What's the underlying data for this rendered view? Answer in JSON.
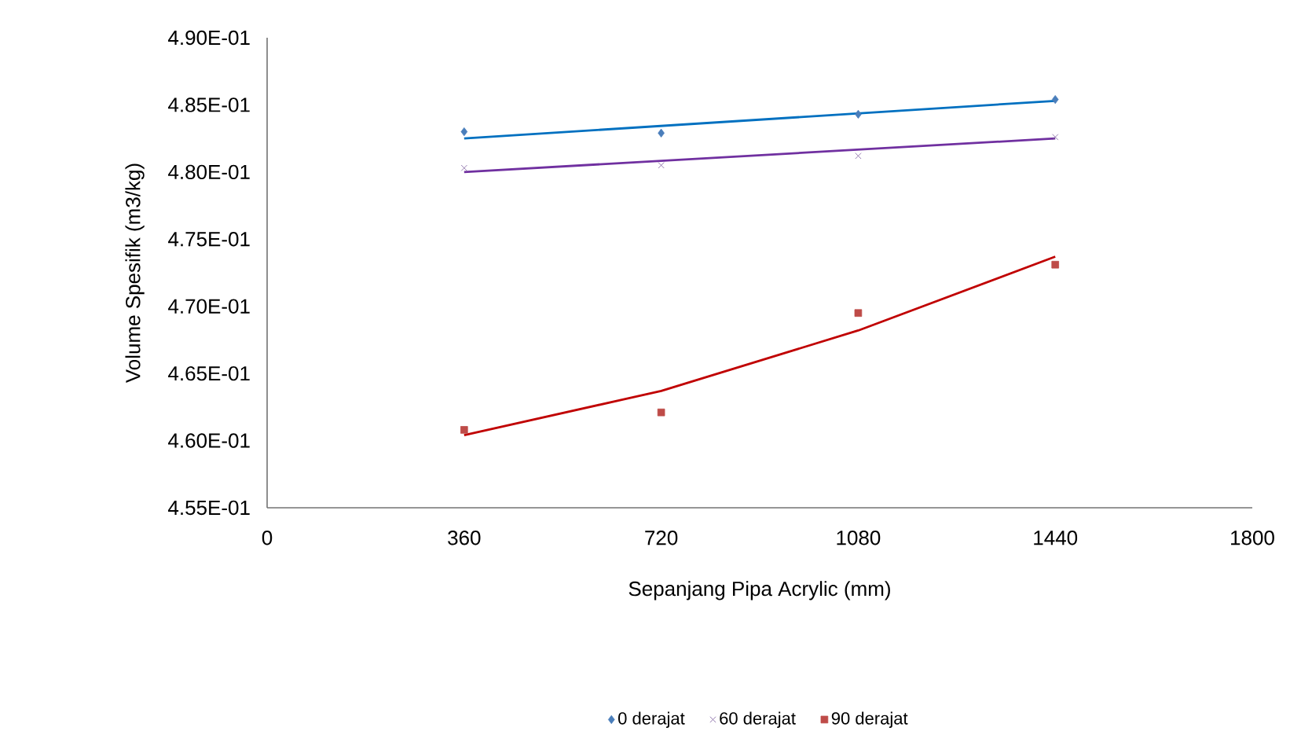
{
  "chart_data": {
    "type": "scatter",
    "xlabel": "Sepanjang Pipa Acrylic (mm)",
    "ylabel": "Volume Spesifik (m3/kg)",
    "x": [
      360,
      720,
      1080,
      1440
    ],
    "series": [
      {
        "name": "0 derajat",
        "color": "#4a7ebb",
        "marker": "diamond",
        "values": [
          0.483,
          0.4829,
          0.4843,
          0.4854
        ]
      },
      {
        "name": "60 derajat",
        "color": "#7d60a0",
        "marker": "cross",
        "values": [
          0.4803,
          0.4805,
          0.4812,
          0.4826
        ]
      },
      {
        "name": "90 derajat",
        "color": "#be4b48",
        "marker": "square",
        "values": [
          0.4608,
          0.4621,
          0.4695,
          0.4731
        ]
      },
      {
        "type": "line",
        "color": "#0070c0",
        "marker": "none",
        "x": [
          360,
          1440
        ],
        "values": [
          0.4825,
          0.4853
        ]
      },
      {
        "type": "line",
        "color": "#7030a0",
        "marker": "none",
        "x": [
          360,
          1440
        ],
        "values": [
          0.48,
          0.4825
        ]
      },
      {
        "type": "line",
        "color": "#c00000",
        "marker": "none",
        "x": [
          360,
          720,
          1080,
          1440
        ],
        "values": [
          0.4604,
          0.4637,
          0.4682,
          0.4737
        ]
      }
    ],
    "xlim": [
      0,
      1800
    ],
    "xticks": [
      0,
      360,
      720,
      1080,
      1440,
      1800
    ],
    "ylim": [
      0.455,
      0.49
    ],
    "yticks": [
      {
        "value": 0.455,
        "label": "4.55E-01"
      },
      {
        "value": 0.46,
        "label": "4.60E-01"
      },
      {
        "value": 0.465,
        "label": "4.65E-01"
      },
      {
        "value": 0.47,
        "label": "4.70E-01"
      },
      {
        "value": 0.475,
        "label": "4.75E-01"
      },
      {
        "value": 0.48,
        "label": "4.80E-01"
      },
      {
        "value": 0.485,
        "label": "4.85E-01"
      },
      {
        "value": 0.49,
        "label": "4.90E-01"
      }
    ],
    "grid": false,
    "legend": "bottom"
  }
}
